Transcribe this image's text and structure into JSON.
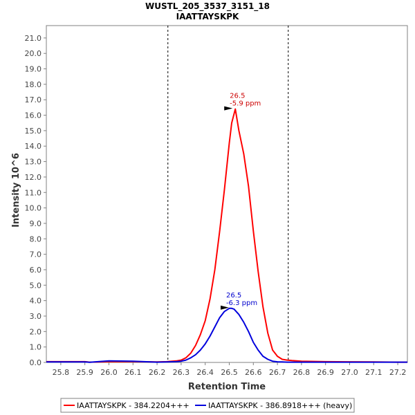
{
  "chart_data": {
    "type": "line",
    "title": "WUSTL_205_3537_3151_18",
    "subtitle": "IAATTAYSKPK",
    "xlabel": "Retention Time",
    "ylabel": "Intensity 10^6",
    "xlim": [
      25.74,
      27.24
    ],
    "ylim": [
      0,
      21.8
    ],
    "xticks": [
      25.8,
      25.9,
      26.0,
      26.1,
      26.2,
      26.3,
      26.4,
      26.5,
      26.6,
      26.7,
      26.8,
      26.9,
      27.0,
      27.1,
      27.2
    ],
    "yticks": [
      0.0,
      1.0,
      2.0,
      3.0,
      4.0,
      5.0,
      6.0,
      7.0,
      8.0,
      9.0,
      10.0,
      11.0,
      12.0,
      13.0,
      14.0,
      15.0,
      16.0,
      17.0,
      18.0,
      19.0,
      20.0,
      21.0
    ],
    "boundaries": [
      26.245,
      26.745
    ],
    "grid": false,
    "legend_position": "bottom",
    "series": [
      {
        "name": "IAATTAYSKPK - 384.2204+++",
        "color": "#ff0000",
        "x": [
          25.74,
          25.9,
          25.92,
          26.0,
          26.1,
          26.2,
          26.24,
          26.28,
          26.3,
          26.32,
          26.34,
          26.36,
          26.38,
          26.4,
          26.42,
          26.44,
          26.46,
          26.48,
          26.5,
          26.51,
          26.525,
          26.54,
          26.56,
          26.58,
          26.6,
          26.62,
          26.64,
          26.66,
          26.68,
          26.7,
          26.72,
          26.74,
          26.76,
          26.8,
          26.9,
          27.0,
          27.1,
          27.2,
          27.24
        ],
        "y": [
          0.05,
          0.05,
          0.02,
          0.05,
          0.05,
          0.03,
          0.05,
          0.1,
          0.15,
          0.3,
          0.6,
          1.1,
          1.8,
          2.7,
          4.1,
          6.0,
          8.5,
          11.2,
          14.2,
          15.5,
          16.4,
          15.0,
          13.5,
          11.4,
          8.5,
          5.9,
          3.6,
          1.9,
          0.8,
          0.4,
          0.2,
          0.15,
          0.12,
          0.08,
          0.05,
          0.04,
          0.03,
          0.02,
          0.02
        ]
      },
      {
        "name": "IAATTAYSKPK - 386.8918+++ (heavy)",
        "color": "#0000dd",
        "x": [
          25.74,
          25.9,
          25.92,
          26.0,
          26.1,
          26.2,
          26.24,
          26.28,
          26.3,
          26.32,
          26.34,
          26.36,
          26.38,
          26.4,
          26.42,
          26.44,
          26.46,
          26.48,
          26.5,
          26.51,
          26.52,
          26.54,
          26.56,
          26.58,
          26.6,
          26.62,
          26.64,
          26.66,
          26.68,
          26.7,
          26.72,
          26.74,
          26.76,
          26.8,
          26.9,
          27.0,
          27.1,
          27.2,
          27.24
        ],
        "y": [
          0.03,
          0.03,
          0.01,
          0.1,
          0.08,
          0.02,
          0.03,
          0.05,
          0.08,
          0.15,
          0.3,
          0.5,
          0.8,
          1.2,
          1.7,
          2.3,
          2.9,
          3.3,
          3.5,
          3.5,
          3.45,
          3.1,
          2.6,
          2.0,
          1.3,
          0.8,
          0.4,
          0.2,
          0.08,
          0.04,
          0.03,
          0.02,
          0.02,
          0.02,
          0.02,
          0.02,
          0.02,
          0.02,
          0.02
        ]
      }
    ],
    "annotations": [
      {
        "name": "red-peak",
        "x": 26.525,
        "y": 16.4,
        "color": "#cc0000",
        "lines": [
          "26.5",
          "-5.9 ppm"
        ]
      },
      {
        "name": "blue-peak",
        "x": 26.51,
        "y": 3.5,
        "color": "#0000cc",
        "lines": [
          "26.5",
          "-6.3 ppm"
        ]
      }
    ]
  }
}
